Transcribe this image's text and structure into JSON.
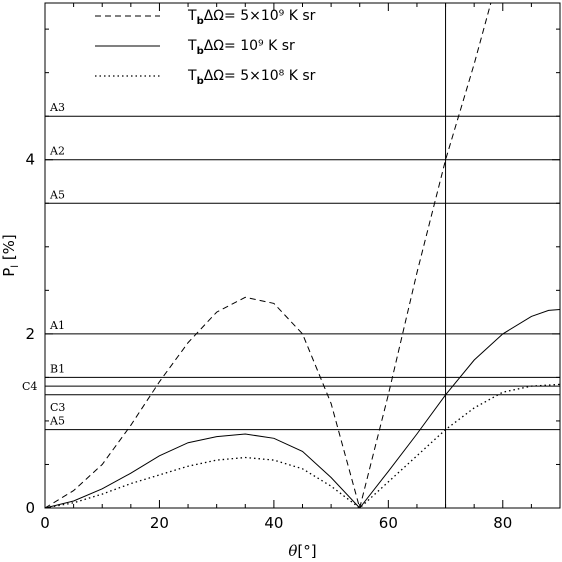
{
  "chart_data": {
    "type": "line",
    "xlabel": "θ[°]",
    "ylabel": "P_l [%]",
    "xlim": [
      0,
      90
    ],
    "ylim": [
      0,
      5.8
    ],
    "x_ticks": [
      0,
      20,
      40,
      60,
      80
    ],
    "y_ticks": [
      0,
      2,
      4
    ],
    "grid": false,
    "legend_position": "top-left",
    "series": [
      {
        "name": "T_bΔΩ= 5×10⁹ K sr",
        "label_main": "T",
        "label_sub": "b",
        "label_rest": "ΔΩ=  5×10⁹ K sr",
        "style": "dashed",
        "x": [
          0,
          5,
          10,
          15,
          20,
          25,
          30,
          35,
          40,
          45,
          50,
          55,
          60,
          65,
          70,
          75,
          78
        ],
        "y": [
          0,
          0.2,
          0.5,
          0.95,
          1.45,
          1.9,
          2.25,
          2.42,
          2.35,
          2.0,
          1.2,
          0,
          1.3,
          2.7,
          4.0,
          5.1,
          5.82
        ]
      },
      {
        "name": "T_bΔΩ= 10⁹ K sr",
        "label_main": "T",
        "label_sub": "b",
        "label_rest": "ΔΩ=  10⁹ K sr",
        "style": "solid",
        "x": [
          0,
          5,
          10,
          15,
          20,
          25,
          30,
          35,
          40,
          45,
          50,
          55,
          60,
          65,
          70,
          75,
          80,
          85,
          88,
          90
        ],
        "y": [
          0,
          0.08,
          0.22,
          0.4,
          0.6,
          0.75,
          0.82,
          0.85,
          0.8,
          0.65,
          0.35,
          0,
          0.42,
          0.85,
          1.3,
          1.7,
          2.0,
          2.2,
          2.27,
          2.28
        ]
      },
      {
        "name": "T_bΔΩ= 5×10⁸ K sr",
        "label_main": "T",
        "label_sub": "b",
        "label_rest": "ΔΩ=  5×10⁸ K sr",
        "style": "dotted",
        "x": [
          0,
          5,
          10,
          15,
          20,
          25,
          30,
          35,
          40,
          45,
          50,
          55,
          60,
          65,
          70,
          75,
          80,
          85,
          90
        ],
        "y": [
          0,
          0.06,
          0.16,
          0.28,
          0.38,
          0.48,
          0.55,
          0.58,
          0.55,
          0.45,
          0.25,
          0,
          0.3,
          0.6,
          0.9,
          1.15,
          1.33,
          1.4,
          1.42
        ]
      }
    ],
    "reference_lines": [
      {
        "label": "A3",
        "y": 4.5
      },
      {
        "label": "A2",
        "y": 4.0
      },
      {
        "label": "A5",
        "y": 3.5
      },
      {
        "label": "A1",
        "y": 2.0
      },
      {
        "label": "B1",
        "y": 1.5
      },
      {
        "label": "C4",
        "y": 1.4
      },
      {
        "label": "C3",
        "y": 1.3
      },
      {
        "label": "A5",
        "y": 0.9
      }
    ],
    "vertical_line_x": 70
  }
}
